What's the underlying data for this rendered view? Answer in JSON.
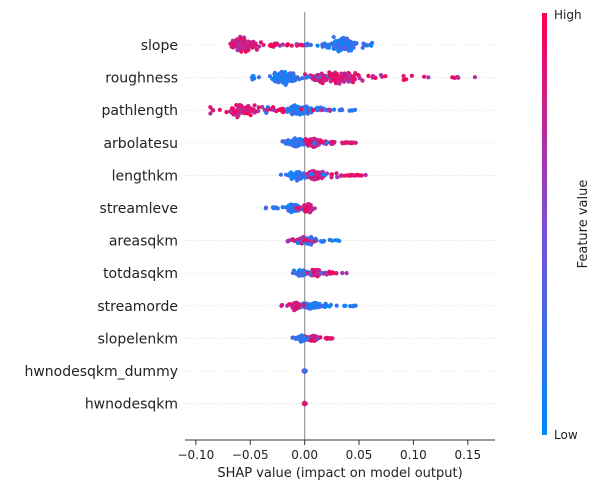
{
  "chart_data": {
    "type": "scatter",
    "subtype": "shap-beeswarm",
    "title": "",
    "xlabel": "SHAP value (impact on model output)",
    "xlim": [
      -0.11,
      0.175
    ],
    "xticks": [
      -0.1,
      -0.05,
      0.0,
      0.05,
      0.1,
      0.15
    ],
    "xtick_labels": [
      "−0.10",
      "−0.05",
      "0.00",
      "0.05",
      "0.10",
      "0.15"
    ],
    "colorbar": {
      "label": "Feature value",
      "high_label": "High",
      "low_label": "Low",
      "high_color": "#ff0052",
      "low_color": "#008bfb"
    },
    "zero_line_color": "#999999",
    "features": [
      {
        "name": "slope",
        "min": -0.075,
        "max": 0.063,
        "low_range": [
          0.0,
          0.063
        ],
        "high_range": [
          -0.075,
          0.0
        ],
        "dense_low": 0.035,
        "dense_high": -0.058,
        "spread": 1.0
      },
      {
        "name": "roughness",
        "min": -0.052,
        "max": 0.157,
        "low_range": [
          -0.052,
          0.025
        ],
        "high_range": [
          0.0,
          0.157
        ],
        "dense_low": -0.018,
        "dense_high": 0.03,
        "spread": 0.9
      },
      {
        "name": "pathlength",
        "min": -0.092,
        "max": 0.048,
        "low_range": [
          -0.04,
          0.048
        ],
        "high_range": [
          -0.092,
          0.025
        ],
        "dense_low": -0.005,
        "dense_high": -0.055,
        "spread": 0.8
      },
      {
        "name": "arbolatesu",
        "min": -0.022,
        "max": 0.05,
        "low_range": [
          -0.022,
          0.022
        ],
        "high_range": [
          0.0,
          0.05
        ],
        "dense_low": -0.008,
        "dense_high": 0.008,
        "spread": 0.65
      },
      {
        "name": "lengthkm",
        "min": -0.022,
        "max": 0.058,
        "low_range": [
          -0.022,
          0.02
        ],
        "high_range": [
          0.0,
          0.058
        ],
        "dense_low": -0.005,
        "dense_high": 0.01,
        "spread": 0.6
      },
      {
        "name": "streamleve",
        "min": -0.04,
        "max": 0.01,
        "low_range": [
          -0.04,
          0.0
        ],
        "high_range": [
          -0.01,
          0.01
        ],
        "dense_low": -0.01,
        "dense_high": 0.003,
        "spread": 0.55
      },
      {
        "name": "areasqkm",
        "min": -0.018,
        "max": 0.032,
        "low_range": [
          -0.012,
          0.032
        ],
        "high_range": [
          -0.018,
          0.01
        ],
        "dense_low": 0.003,
        "dense_high": -0.002,
        "spread": 0.55
      },
      {
        "name": "totdasqkm",
        "min": -0.012,
        "max": 0.042,
        "low_range": [
          -0.012,
          0.02
        ],
        "high_range": [
          0.0,
          0.042
        ],
        "dense_low": -0.003,
        "dense_high": 0.01,
        "spread": 0.5
      },
      {
        "name": "streamorde",
        "min": -0.022,
        "max": 0.048,
        "low_range": [
          -0.01,
          0.048
        ],
        "high_range": [
          -0.022,
          0.005
        ],
        "dense_low": 0.005,
        "dense_high": -0.008,
        "spread": 0.5
      },
      {
        "name": "slopelenkm",
        "min": -0.012,
        "max": 0.028,
        "low_range": [
          -0.012,
          0.012
        ],
        "high_range": [
          0.0,
          0.028
        ],
        "dense_low": -0.002,
        "dense_high": 0.008,
        "spread": 0.45
      },
      {
        "name": "hwnodesqkm_dummy",
        "min": -0.001,
        "max": 0.001,
        "low_range": [
          -0.001,
          0.001
        ],
        "high_range": [
          -0.001,
          0.001
        ],
        "dense_low": 0.0,
        "dense_high": 0.0,
        "spread": 0.1
      },
      {
        "name": "hwnodesqkm",
        "min": -0.001,
        "max": 0.001,
        "low_range": [
          -0.001,
          0.001
        ],
        "high_range": [
          -0.001,
          0.001
        ],
        "dense_low": 0.0,
        "dense_high": 0.0,
        "spread": 0.1
      }
    ]
  }
}
